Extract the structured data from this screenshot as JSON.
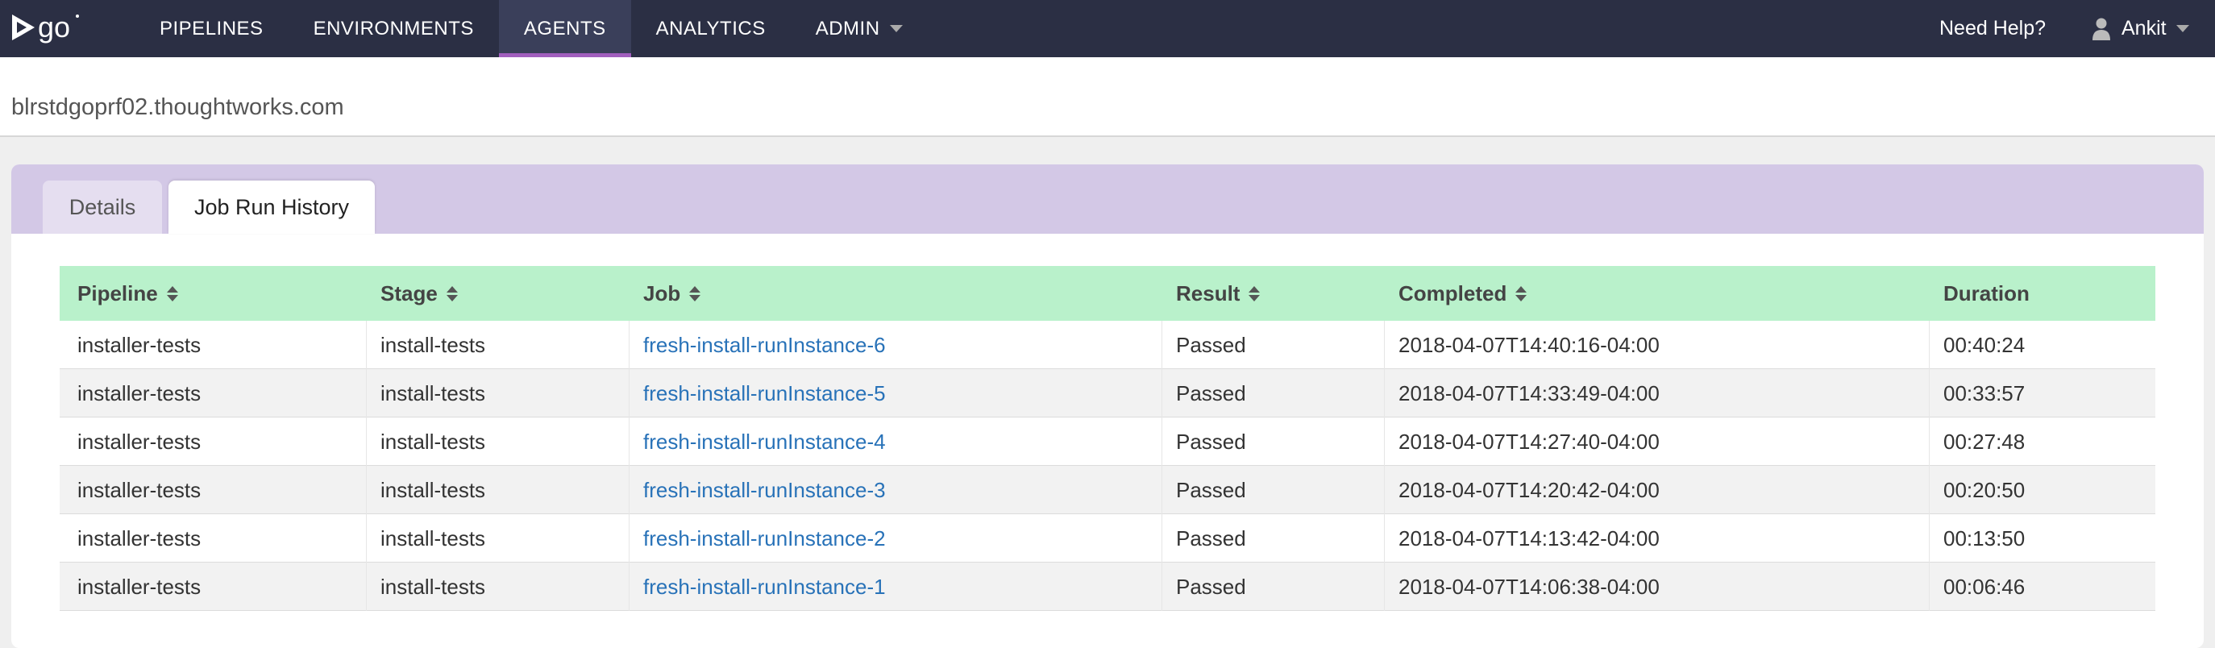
{
  "header": {
    "logo_text": "go",
    "nav": [
      {
        "label": "PIPELINES",
        "active": false
      },
      {
        "label": "ENVIRONMENTS",
        "active": false
      },
      {
        "label": "AGENTS",
        "active": true
      },
      {
        "label": "ANALYTICS",
        "active": false
      },
      {
        "label": "ADMIN",
        "active": false,
        "has_dropdown": true
      }
    ],
    "help_label": "Need Help?",
    "user_name": "Ankit",
    "colors": {
      "background": "#2b2f44",
      "active_underline": "#a15fbe"
    }
  },
  "agent": {
    "hostname": "blrstdgoprf02.thoughtworks.com"
  },
  "tabs": [
    {
      "label": "Details",
      "selected": false
    },
    {
      "label": "Job Run History",
      "selected": true
    }
  ],
  "table": {
    "columns": [
      {
        "label": "Pipeline",
        "sortable": true
      },
      {
        "label": "Stage",
        "sortable": true
      },
      {
        "label": "Job",
        "sortable": true
      },
      {
        "label": "Result",
        "sortable": true
      },
      {
        "label": "Completed",
        "sortable": true
      },
      {
        "label": "Duration",
        "sortable": false
      }
    ],
    "rows": [
      {
        "pipeline": "installer-tests",
        "stage": "install-tests",
        "job": "fresh-install-runInstance-6",
        "result": "Passed",
        "completed": "2018-04-07T14:40:16-04:00",
        "duration": "00:40:24"
      },
      {
        "pipeline": "installer-tests",
        "stage": "install-tests",
        "job": "fresh-install-runInstance-5",
        "result": "Passed",
        "completed": "2018-04-07T14:33:49-04:00",
        "duration": "00:33:57"
      },
      {
        "pipeline": "installer-tests",
        "stage": "install-tests",
        "job": "fresh-install-runInstance-4",
        "result": "Passed",
        "completed": "2018-04-07T14:27:40-04:00",
        "duration": "00:27:48"
      },
      {
        "pipeline": "installer-tests",
        "stage": "install-tests",
        "job": "fresh-install-runInstance-3",
        "result": "Passed",
        "completed": "2018-04-07T14:20:42-04:00",
        "duration": "00:20:50"
      },
      {
        "pipeline": "installer-tests",
        "stage": "install-tests",
        "job": "fresh-install-runInstance-2",
        "result": "Passed",
        "completed": "2018-04-07T14:13:42-04:00",
        "duration": "00:13:50"
      },
      {
        "pipeline": "installer-tests",
        "stage": "install-tests",
        "job": "fresh-install-runInstance-1",
        "result": "Passed",
        "completed": "2018-04-07T14:06:38-04:00",
        "duration": "00:06:46"
      }
    ],
    "colors": {
      "header_bg": "#b9f1cb",
      "link": "#2872b8"
    }
  }
}
